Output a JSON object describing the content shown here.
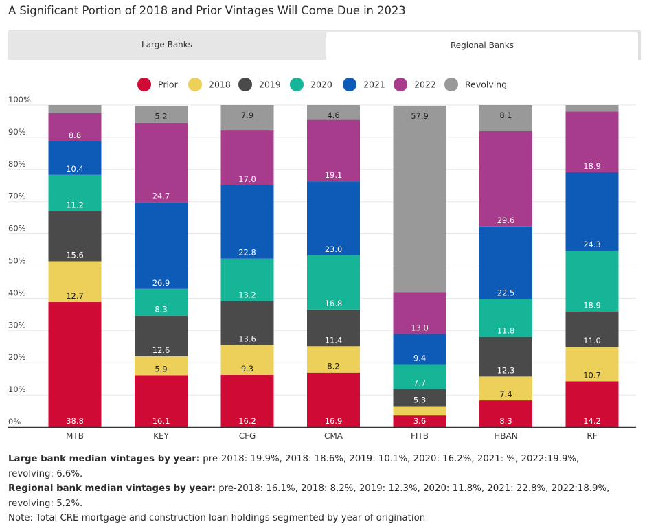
{
  "title": "A Significant Portion of 2018 and Prior Vintages Will Come Due in 2023",
  "tabs": [
    {
      "label": "Large Banks"
    },
    {
      "label": "Regional Banks"
    }
  ],
  "colors": {
    "Prior": "#cf0a35",
    "2018": "#ecd05a",
    "2019": "#4a4a4a",
    "2020": "#17b597",
    "2021": "#0e5bb7",
    "2022": "#a83c8c",
    "Revolving": "#999999"
  },
  "chart_data": {
    "type": "bar",
    "stacked": true,
    "categories": [
      "MTB",
      "KEY",
      "CFG",
      "CMA",
      "FITB",
      "HBAN",
      "RF"
    ],
    "series": [
      {
        "name": "Prior",
        "values": [
          38.8,
          16.1,
          16.2,
          16.9,
          3.6,
          8.3,
          14.2
        ],
        "labels": [
          "38.8",
          "16.1",
          "16.2",
          "16.9",
          "3.6",
          "8.3",
          "14.2"
        ]
      },
      {
        "name": "2018",
        "values": [
          12.7,
          5.9,
          9.3,
          8.2,
          2.9,
          7.4,
          10.7
        ],
        "labels": [
          "12.7",
          "5.9",
          "9.3",
          "8.2",
          "",
          "7.4",
          "10.7"
        ]
      },
      {
        "name": "2019",
        "values": [
          15.6,
          12.6,
          13.6,
          11.4,
          5.3,
          12.3,
          11.0
        ],
        "labels": [
          "15.6",
          "12.6",
          "13.6",
          "11.4",
          "5.3",
          "12.3",
          "11.0"
        ]
      },
      {
        "name": "2020",
        "values": [
          11.2,
          8.3,
          13.2,
          16.8,
          7.7,
          11.8,
          18.9
        ],
        "labels": [
          "11.2",
          "8.3",
          "13.2",
          "16.8",
          "7.7",
          "11.8",
          "18.9"
        ]
      },
      {
        "name": "2021",
        "values": [
          10.4,
          26.9,
          22.8,
          23.0,
          9.4,
          22.5,
          24.3
        ],
        "labels": [
          "10.4",
          "26.9",
          "22.8",
          "23.0",
          "9.4",
          "22.5",
          "24.3"
        ]
      },
      {
        "name": "2022",
        "values": [
          8.8,
          24.7,
          17.0,
          19.1,
          13.0,
          29.6,
          18.9
        ],
        "labels": [
          "8.8",
          "24.7",
          "17.0",
          "19.1",
          "13.0",
          "29.6",
          "18.9"
        ]
      },
      {
        "name": "Revolving",
        "values": [
          2.5,
          5.2,
          7.9,
          4.6,
          57.9,
          8.1,
          2.0
        ],
        "labels": [
          "",
          "5.2",
          "7.9",
          "4.6",
          "57.9",
          "8.1",
          ""
        ]
      }
    ],
    "y_ticks": [
      "0%",
      "10%",
      "20%",
      "30%",
      "40%",
      "50%",
      "60%",
      "70%",
      "80%",
      "90%",
      "100%"
    ],
    "ylim": [
      0,
      100
    ],
    "legend_position": "top-center",
    "grid": true
  },
  "notes": {
    "large_label": "Large bank median vintages by year:",
    "large_text": " pre-2018: 19.9%, 2018: 18.6%, 2019: 10.1%, 2020: 16.2%, 2021: %, 2022:19.9%, revolving: 6.6%.",
    "regional_label": "Regional bank median vintages by year:",
    "regional_text": " pre-2018: 16.1%, 2018: 8.2%, 2019: 12.3%, 2020: 11.8%, 2021: 22.8%, 2022:18.9%, revolving: 5.2%.",
    "note": "Note: Total CRE mortgage and construction loan holdings segmented by year of origination"
  }
}
